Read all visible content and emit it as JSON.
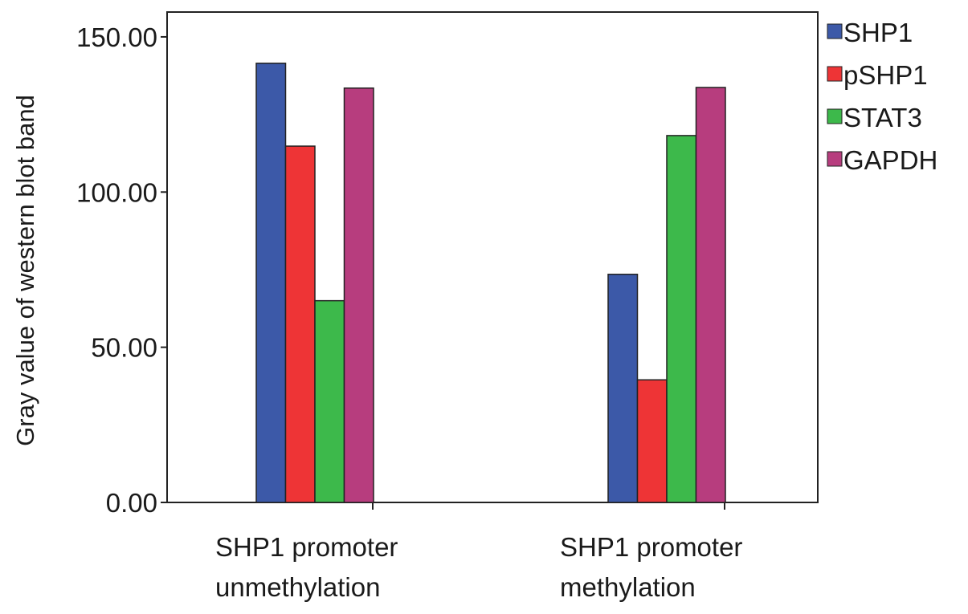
{
  "chart_data": {
    "type": "bar",
    "title": "",
    "xlabel": "",
    "ylabel": "Gray value of western blot band",
    "ylim": [
      0,
      158
    ],
    "yticks": [
      "0.00",
      "50.00",
      "100.00",
      "150.00"
    ],
    "yticks_values": [
      0,
      50,
      100,
      150
    ],
    "categories": [
      [
        "SHP1 promoter",
        "unmethylation"
      ],
      [
        "SHP1 promoter",
        "methylation"
      ]
    ],
    "series": [
      {
        "name": "SHP1",
        "color": "#3c59a8",
        "values": [
          141.5,
          73.5
        ]
      },
      {
        "name": "pSHP1",
        "color": "#ee3436",
        "values": [
          114.8,
          39.5
        ]
      },
      {
        "name": "STAT3",
        "color": "#3db94b",
        "values": [
          65.0,
          118.2
        ]
      },
      {
        "name": "GAPDH",
        "color": "#b73d7e",
        "values": [
          133.5,
          133.7
        ]
      }
    ],
    "legend_position": "right",
    "grid": false
  }
}
